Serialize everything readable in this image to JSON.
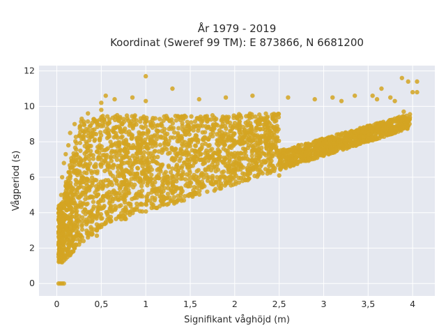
{
  "chart_data": {
    "type": "scatter",
    "title": "År 1979 - 2019",
    "subtitle": "Koordinat (Sweref 99 TM): E 873866, N 6681200",
    "xlabel": "Signifikant våghöjd (m)",
    "ylabel": "Vågperiod (s)",
    "xlim": [
      -0.2,
      4.25
    ],
    "ylim": [
      -0.7,
      12.3
    ],
    "x_ticks": [
      0,
      0.5,
      1,
      1.5,
      2,
      2.5,
      3,
      3.5,
      4
    ],
    "x_tick_labels": [
      "0",
      "0,5",
      "1",
      "1,5",
      "2",
      "2,5",
      "3",
      "3,5",
      "4"
    ],
    "y_ticks": [
      0,
      2,
      4,
      6,
      8,
      10,
      12
    ],
    "y_tick_labels": [
      "0",
      "2",
      "4",
      "6",
      "8",
      "10",
      "12"
    ],
    "grid": true,
    "colors": {
      "marker": "#d4a422",
      "plot_bg": "#e5e8f0",
      "grid": "#ffffff"
    },
    "series": [
      {
        "points": [
          [
            0.02,
            0.0
          ],
          [
            0.04,
            0.0
          ],
          [
            0.06,
            0.0
          ],
          [
            0.08,
            0.0
          ],
          [
            0.02,
            1.5
          ],
          [
            0.03,
            2.2
          ],
          [
            0.03,
            3.0
          ],
          [
            0.04,
            4.0
          ],
          [
            0.05,
            5.0
          ],
          [
            0.06,
            1.2
          ],
          [
            0.06,
            6.0
          ],
          [
            0.08,
            1.3
          ],
          [
            0.08,
            6.8
          ],
          [
            0.1,
            1.4
          ],
          [
            0.1,
            7.3
          ],
          [
            0.12,
            1.5
          ],
          [
            0.13,
            7.8
          ],
          [
            0.15,
            1.6
          ],
          [
            0.15,
            8.5
          ],
          [
            0.18,
            1.8
          ],
          [
            0.2,
            2.0
          ],
          [
            0.2,
            9.0
          ],
          [
            0.25,
            2.2
          ],
          [
            0.28,
            9.3
          ],
          [
            0.3,
            2.4
          ],
          [
            0.35,
            9.6
          ],
          [
            0.35,
            2.6
          ],
          [
            0.4,
            2.8
          ],
          [
            0.45,
            3.0
          ],
          [
            0.5,
            3.2
          ],
          [
            0.5,
            9.8
          ],
          [
            0.55,
            3.4
          ],
          [
            0.5,
            10.2
          ],
          [
            0.55,
            10.6
          ],
          [
            0.6,
            3.5
          ],
          [
            0.65,
            10.4
          ],
          [
            0.7,
            3.8
          ],
          [
            0.8,
            4.0
          ],
          [
            0.85,
            10.5
          ],
          [
            0.9,
            4.3
          ],
          [
            1.0,
            4.5
          ],
          [
            1.0,
            10.3
          ],
          [
            1.1,
            4.7
          ],
          [
            1.2,
            4.9
          ],
          [
            1.3,
            5.1
          ],
          [
            1.3,
            11.0
          ],
          [
            1.4,
            5.3
          ],
          [
            1.5,
            5.5
          ],
          [
            1.6,
            5.7
          ],
          [
            1.6,
            10.4
          ],
          [
            1.8,
            6.0
          ],
          [
            1.9,
            10.5
          ],
          [
            2.0,
            6.2
          ],
          [
            2.2,
            6.5
          ],
          [
            2.2,
            10.6
          ],
          [
            2.4,
            6.8
          ],
          [
            2.5,
            6.1
          ],
          [
            2.6,
            7.1
          ],
          [
            2.6,
            10.5
          ],
          [
            2.8,
            7.4
          ],
          [
            2.9,
            10.4
          ],
          [
            3.0,
            7.6
          ],
          [
            3.1,
            10.5
          ],
          [
            3.2,
            7.8
          ],
          [
            3.2,
            10.3
          ],
          [
            3.3,
            8.1
          ],
          [
            3.35,
            10.6
          ],
          [
            3.4,
            8.3
          ],
          [
            3.5,
            8.5
          ],
          [
            3.55,
            10.6
          ],
          [
            3.6,
            8.8
          ],
          [
            3.6,
            10.4
          ],
          [
            3.65,
            11.0
          ],
          [
            3.7,
            9.0
          ],
          [
            3.75,
            10.5
          ],
          [
            3.8,
            9.2
          ],
          [
            3.8,
            10.3
          ],
          [
            3.85,
            9.4
          ],
          [
            3.88,
            11.6
          ],
          [
            3.9,
            9.7
          ],
          [
            3.95,
            11.4
          ],
          [
            4.0,
            10.8
          ],
          [
            4.05,
            10.8
          ],
          [
            4.05,
            11.4
          ],
          [
            0.45,
            2.7
          ],
          [
            1.0,
            11.7
          ]
        ]
      }
    ]
  }
}
